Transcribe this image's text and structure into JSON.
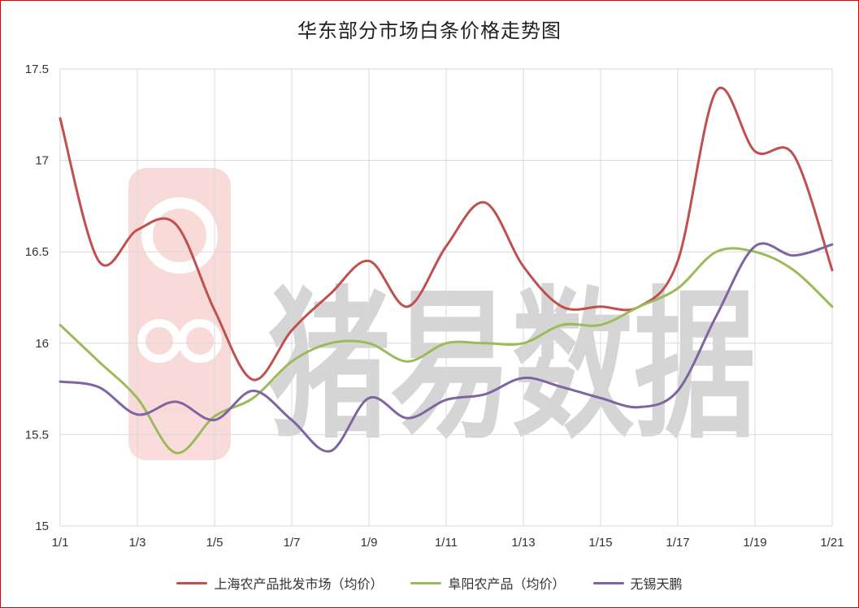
{
  "chart_data": {
    "type": "line",
    "title": "华东部分市场白条价格走势图",
    "xlabel": "",
    "ylabel": "",
    "x": [
      "1/1",
      "1/2",
      "1/3",
      "1/4",
      "1/5",
      "1/6",
      "1/7",
      "1/8",
      "1/9",
      "1/10",
      "1/11",
      "1/12",
      "1/13",
      "1/14",
      "1/15",
      "1/16",
      "1/17",
      "1/18",
      "1/19",
      "1/20",
      "1/21"
    ],
    "x_tick_labels": [
      "1/1",
      "1/3",
      "1/5",
      "1/7",
      "1/9",
      "1/11",
      "1/13",
      "1/15",
      "1/17",
      "1/19",
      "1/21"
    ],
    "ylim": [
      15,
      17.5
    ],
    "y_ticks": [
      15,
      15.5,
      16,
      16.5,
      17,
      17.5
    ],
    "y_tick_labels": [
      "15",
      "15.5",
      "16",
      "16.5",
      "17",
      "17.5"
    ],
    "grid": "vertical-and-horizontal",
    "legend_position": "bottom",
    "series": [
      {
        "name": "上海农产品批发市场（均价）",
        "color": "#c0504d",
        "values": [
          17.23,
          16.45,
          16.62,
          16.65,
          16.18,
          15.8,
          16.07,
          16.27,
          16.45,
          16.2,
          16.53,
          16.77,
          16.42,
          16.2,
          16.2,
          16.2,
          16.45,
          17.38,
          17.05,
          17.03,
          16.4
        ]
      },
      {
        "name": "阜阳农产品（均价）",
        "color": "#9bbb59",
        "values": [
          16.1,
          15.9,
          15.7,
          15.4,
          15.6,
          15.7,
          15.9,
          16.0,
          16.0,
          15.9,
          16.0,
          16.0,
          16.0,
          16.1,
          16.1,
          16.2,
          16.3,
          16.5,
          16.5,
          16.4,
          16.2
        ]
      },
      {
        "name": "无锡天鹏",
        "color": "#8064a2",
        "values": [
          15.79,
          15.76,
          15.61,
          15.68,
          15.58,
          15.74,
          15.58,
          15.41,
          15.7,
          15.59,
          15.69,
          15.72,
          15.81,
          15.76,
          15.7,
          15.65,
          15.74,
          16.15,
          16.53,
          16.48,
          16.54
        ]
      }
    ]
  },
  "watermark": "猪易数据"
}
